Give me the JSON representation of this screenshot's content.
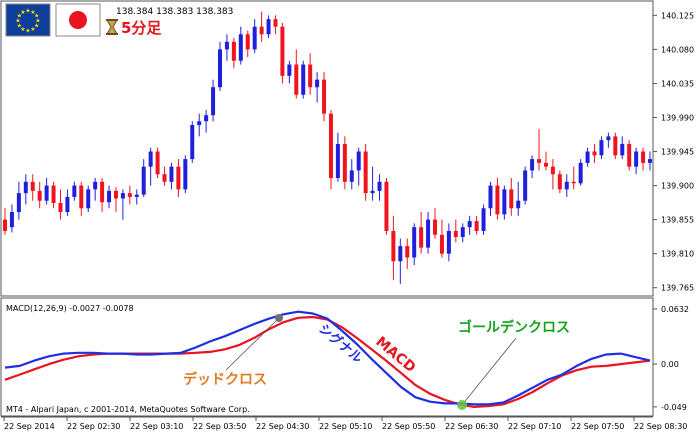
{
  "header": {
    "flags": [
      "eu-flag-icon",
      "japan-flag-icon"
    ],
    "price_line": "138.384 138.383 138.383",
    "timeframe_label": "5分足",
    "timeframe_icon": "hourglass-icon"
  },
  "colors": {
    "bull": "#1f1fdc",
    "bear": "#f0141e",
    "macd_line": "#e8141e",
    "signal_line": "#1f2fe0",
    "dead_cross_text": "#e07b22",
    "golden_cross_text": "#16a21e"
  },
  "price_axis": {
    "ticks": [
      "140.125",
      "140.080",
      "140.035",
      "139.990",
      "139.945",
      "139.900",
      "139.855",
      "139.810",
      "139.765"
    ]
  },
  "indicator": {
    "label": "MACD(12,26,9) -0.0027 -0.0078",
    "axis_ticks": [
      "0.0632",
      "0.00",
      "-0.049"
    ],
    "macd_label": "MACD",
    "signal_label": "シグナル",
    "dead_cross_label": "デッドクロス",
    "golden_cross_label": "ゴールデンクロス",
    "footer": "MT4 - Alpari Japan, c 2001-2014, MetaQuotes Software Corp."
  },
  "time_axis": {
    "labels": [
      "22 Sep 2014",
      "22 Sep 02:30",
      "22 Sep 03:10",
      "22 Sep 03:50",
      "22 Sep 04:30",
      "22 Sep 05:10",
      "22 Sep 05:50",
      "22 Sep 06:30",
      "22 Sep 07:10",
      "22 Sep 07:50",
      "22 Sep 08:30"
    ]
  },
  "chart_data": [
    {
      "type": "candlestick",
      "title": "",
      "xlabel": "",
      "ylabel": "",
      "ylim": [
        139.758,
        140.14
      ],
      "candles": [
        {
          "o": 139.855,
          "h": 139.87,
          "l": 139.835,
          "c": 139.84
        },
        {
          "o": 139.845,
          "h": 139.875,
          "l": 139.838,
          "c": 139.865
        },
        {
          "o": 139.865,
          "h": 139.905,
          "l": 139.855,
          "c": 139.89
        },
        {
          "o": 139.89,
          "h": 139.915,
          "l": 139.875,
          "c": 139.905
        },
        {
          "o": 139.905,
          "h": 139.915,
          "l": 139.88,
          "c": 139.893
        },
        {
          "o": 139.893,
          "h": 139.905,
          "l": 139.87,
          "c": 139.88
        },
        {
          "o": 139.88,
          "h": 139.91,
          "l": 139.875,
          "c": 139.9
        },
        {
          "o": 139.9,
          "h": 139.905,
          "l": 139.87,
          "c": 139.877
        },
        {
          "o": 139.877,
          "h": 139.895,
          "l": 139.855,
          "c": 139.865
        },
        {
          "o": 139.865,
          "h": 139.895,
          "l": 139.86,
          "c": 139.885
        },
        {
          "o": 139.885,
          "h": 139.905,
          "l": 139.88,
          "c": 139.9
        },
        {
          "o": 139.9,
          "h": 139.905,
          "l": 139.86,
          "c": 139.87
        },
        {
          "o": 139.87,
          "h": 139.9,
          "l": 139.865,
          "c": 139.895
        },
        {
          "o": 139.895,
          "h": 139.91,
          "l": 139.88,
          "c": 139.905
        },
        {
          "o": 139.905,
          "h": 139.91,
          "l": 139.865,
          "c": 139.878
        },
        {
          "o": 139.878,
          "h": 139.9,
          "l": 139.87,
          "c": 139.893
        },
        {
          "o": 139.893,
          "h": 139.898,
          "l": 139.865,
          "c": 139.883
        },
        {
          "o": 139.883,
          "h": 139.895,
          "l": 139.855,
          "c": 139.89
        },
        {
          "o": 139.89,
          "h": 139.9,
          "l": 139.875,
          "c": 139.885
        },
        {
          "o": 139.885,
          "h": 139.895,
          "l": 139.875,
          "c": 139.888
        },
        {
          "o": 139.888,
          "h": 139.935,
          "l": 139.885,
          "c": 139.925
        },
        {
          "o": 139.925,
          "h": 139.95,
          "l": 139.9,
          "c": 139.945
        },
        {
          "o": 139.945,
          "h": 139.95,
          "l": 139.91,
          "c": 139.915
        },
        {
          "o": 139.915,
          "h": 139.925,
          "l": 139.9,
          "c": 139.905
        },
        {
          "o": 139.905,
          "h": 139.93,
          "l": 139.895,
          "c": 139.925
        },
        {
          "o": 139.925,
          "h": 139.935,
          "l": 139.885,
          "c": 139.895
        },
        {
          "o": 139.895,
          "h": 139.94,
          "l": 139.89,
          "c": 139.935
        },
        {
          "o": 139.935,
          "h": 139.985,
          "l": 139.93,
          "c": 139.98
        },
        {
          "o": 139.98,
          "h": 139.995,
          "l": 139.965,
          "c": 139.985
        },
        {
          "o": 139.985,
          "h": 140.0,
          "l": 139.97,
          "c": 139.993
        },
        {
          "o": 139.993,
          "h": 140.04,
          "l": 139.985,
          "c": 140.03
        },
        {
          "o": 140.03,
          "h": 140.09,
          "l": 140.025,
          "c": 140.08
        },
        {
          "o": 140.08,
          "h": 140.1,
          "l": 140.065,
          "c": 140.09
        },
        {
          "o": 140.09,
          "h": 140.095,
          "l": 140.055,
          "c": 140.065
        },
        {
          "o": 140.065,
          "h": 140.11,
          "l": 140.06,
          "c": 140.1
        },
        {
          "o": 140.1,
          "h": 140.105,
          "l": 140.07,
          "c": 140.08
        },
        {
          "o": 140.08,
          "h": 140.12,
          "l": 140.075,
          "c": 140.11
        },
        {
          "o": 140.11,
          "h": 140.13,
          "l": 140.09,
          "c": 140.1
        },
        {
          "o": 140.1,
          "h": 140.125,
          "l": 140.095,
          "c": 140.12
        },
        {
          "o": 140.12,
          "h": 140.125,
          "l": 140.1,
          "c": 140.11
        },
        {
          "o": 140.11,
          "h": 140.115,
          "l": 140.035,
          "c": 140.045
        },
        {
          "o": 140.045,
          "h": 140.065,
          "l": 140.035,
          "c": 140.06
        },
        {
          "o": 140.06,
          "h": 140.08,
          "l": 140.015,
          "c": 140.02
        },
        {
          "o": 140.02,
          "h": 140.065,
          "l": 140.015,
          "c": 140.06
        },
        {
          "o": 140.06,
          "h": 140.075,
          "l": 140.02,
          "c": 140.03
        },
        {
          "o": 140.03,
          "h": 140.05,
          "l": 140.01,
          "c": 140.04
        },
        {
          "o": 140.04,
          "h": 140.05,
          "l": 139.985,
          "c": 139.995
        },
        {
          "o": 139.995,
          "h": 140.0,
          "l": 139.895,
          "c": 139.91
        },
        {
          "o": 139.91,
          "h": 139.97,
          "l": 139.905,
          "c": 139.955
        },
        {
          "o": 139.955,
          "h": 139.965,
          "l": 139.895,
          "c": 139.905
        },
        {
          "o": 139.905,
          "h": 139.935,
          "l": 139.895,
          "c": 139.92
        },
        {
          "o": 139.92,
          "h": 139.95,
          "l": 139.9,
          "c": 139.945
        },
        {
          "o": 139.945,
          "h": 139.955,
          "l": 139.88,
          "c": 139.89
        },
        {
          "o": 139.89,
          "h": 139.925,
          "l": 139.88,
          "c": 139.893
        },
        {
          "o": 139.893,
          "h": 139.915,
          "l": 139.88,
          "c": 139.905
        },
        {
          "o": 139.905,
          "h": 139.91,
          "l": 139.835,
          "c": 139.84
        },
        {
          "o": 139.84,
          "h": 139.86,
          "l": 139.775,
          "c": 139.8
        },
        {
          "o": 139.8,
          "h": 139.83,
          "l": 139.77,
          "c": 139.82
        },
        {
          "o": 139.82,
          "h": 139.83,
          "l": 139.79,
          "c": 139.805
        },
        {
          "o": 139.805,
          "h": 139.85,
          "l": 139.795,
          "c": 139.845
        },
        {
          "o": 139.845,
          "h": 139.865,
          "l": 139.81,
          "c": 139.818
        },
        {
          "o": 139.818,
          "h": 139.865,
          "l": 139.81,
          "c": 139.855
        },
        {
          "o": 139.855,
          "h": 139.87,
          "l": 139.83,
          "c": 139.835
        },
        {
          "o": 139.835,
          "h": 139.855,
          "l": 139.805,
          "c": 139.81
        },
        {
          "o": 139.81,
          "h": 139.85,
          "l": 139.8,
          "c": 139.84
        },
        {
          "o": 139.84,
          "h": 139.855,
          "l": 139.825,
          "c": 139.832
        },
        {
          "o": 139.832,
          "h": 139.85,
          "l": 139.825,
          "c": 139.845
        },
        {
          "o": 139.845,
          "h": 139.86,
          "l": 139.835,
          "c": 139.853
        },
        {
          "o": 139.853,
          "h": 139.86,
          "l": 139.835,
          "c": 139.84
        },
        {
          "o": 139.84,
          "h": 139.875,
          "l": 139.835,
          "c": 139.87
        },
        {
          "o": 139.87,
          "h": 139.905,
          "l": 139.86,
          "c": 139.9
        },
        {
          "o": 139.9,
          "h": 139.91,
          "l": 139.855,
          "c": 139.862
        },
        {
          "o": 139.862,
          "h": 139.9,
          "l": 139.855,
          "c": 139.895
        },
        {
          "o": 139.895,
          "h": 139.91,
          "l": 139.86,
          "c": 139.87
        },
        {
          "o": 139.87,
          "h": 139.905,
          "l": 139.86,
          "c": 139.88
        },
        {
          "o": 139.88,
          "h": 139.925,
          "l": 139.875,
          "c": 139.92
        },
        {
          "o": 139.92,
          "h": 139.94,
          "l": 139.91,
          "c": 139.935
        },
        {
          "o": 139.935,
          "h": 139.975,
          "l": 139.92,
          "c": 139.93
        },
        {
          "o": 139.93,
          "h": 139.945,
          "l": 139.92,
          "c": 139.925
        },
        {
          "o": 139.925,
          "h": 139.935,
          "l": 139.895,
          "c": 139.915
        },
        {
          "o": 139.915,
          "h": 139.92,
          "l": 139.89,
          "c": 139.895
        },
        {
          "o": 139.895,
          "h": 139.915,
          "l": 139.885,
          "c": 139.905
        },
        {
          "o": 139.905,
          "h": 139.925,
          "l": 139.895,
          "c": 139.903
        },
        {
          "o": 139.903,
          "h": 139.935,
          "l": 139.9,
          "c": 139.93
        },
        {
          "o": 139.93,
          "h": 139.95,
          "l": 139.925,
          "c": 139.945
        },
        {
          "o": 139.945,
          "h": 139.955,
          "l": 139.93,
          "c": 139.94
        },
        {
          "o": 139.94,
          "h": 139.965,
          "l": 139.935,
          "c": 139.96
        },
        {
          "o": 139.96,
          "h": 139.97,
          "l": 139.95,
          "c": 139.965
        },
        {
          "o": 139.965,
          "h": 139.97,
          "l": 139.935,
          "c": 139.94
        },
        {
          "o": 139.94,
          "h": 139.965,
          "l": 139.935,
          "c": 139.955
        },
        {
          "o": 139.955,
          "h": 139.96,
          "l": 139.92,
          "c": 139.925
        },
        {
          "o": 139.925,
          "h": 139.95,
          "l": 139.915,
          "c": 139.945
        },
        {
          "o": 139.945,
          "h": 139.95,
          "l": 139.92,
          "c": 139.93
        },
        {
          "o": 139.93,
          "h": 139.945,
          "l": 139.92,
          "c": 139.935
        }
      ]
    },
    {
      "type": "line",
      "title": "MACD(12,26,9)",
      "xlabel": "",
      "ylabel": "",
      "ylim": [
        -0.056,
        0.07
      ],
      "series": [
        {
          "name": "MACD",
          "values": [
            -0.018,
            -0.012,
            -0.006,
            0.0,
            0.005,
            0.009,
            0.011,
            0.012,
            0.012,
            0.012,
            0.012,
            0.012,
            0.012,
            0.013,
            0.014,
            0.017,
            0.022,
            0.03,
            0.04,
            0.048,
            0.053,
            0.054,
            0.051,
            0.042,
            0.03,
            0.017,
            0.004,
            -0.01,
            -0.024,
            -0.034,
            -0.041,
            -0.046,
            -0.049,
            -0.048,
            -0.046,
            -0.04,
            -0.032,
            -0.022,
            -0.013,
            -0.007,
            -0.003,
            -0.002,
            0.0,
            0.002,
            0.004
          ]
        },
        {
          "name": "シグナル",
          "values": [
            -0.004,
            -0.002,
            0.004,
            0.009,
            0.012,
            0.013,
            0.013,
            0.012,
            0.012,
            0.011,
            0.011,
            0.012,
            0.013,
            0.019,
            0.026,
            0.032,
            0.039,
            0.046,
            0.052,
            0.057,
            0.06,
            0.058,
            0.052,
            0.038,
            0.023,
            0.006,
            -0.01,
            -0.026,
            -0.038,
            -0.043,
            -0.045,
            -0.045,
            -0.046,
            -0.046,
            -0.044,
            -0.036,
            -0.027,
            -0.018,
            -0.012,
            -0.002,
            0.006,
            0.011,
            0.012,
            0.008,
            0.004
          ]
        }
      ]
    }
  ]
}
